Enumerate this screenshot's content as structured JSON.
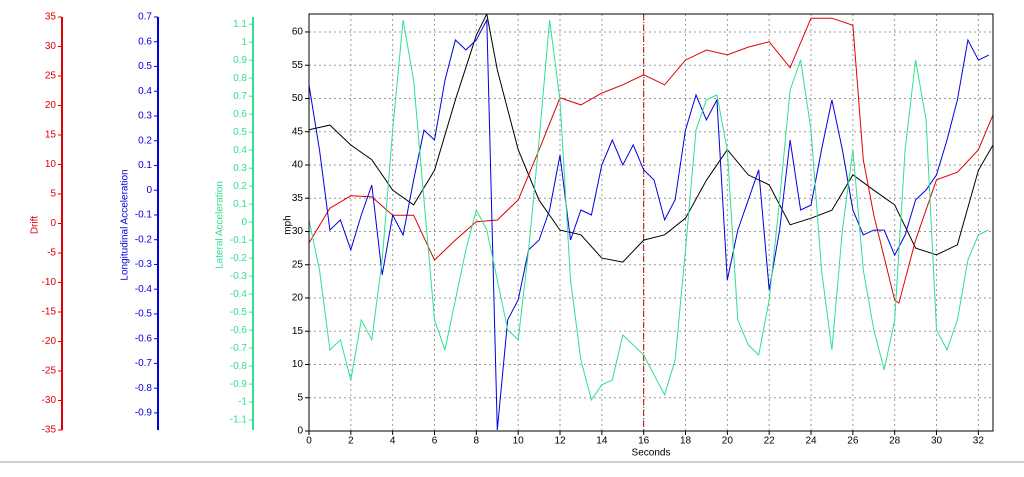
{
  "chart_data": {
    "type": "line",
    "xlabel": "Seconds",
    "xlim": [
      0,
      32.7
    ],
    "xticks": [
      0,
      2,
      4,
      6,
      8,
      10,
      12,
      14,
      16,
      18,
      20,
      22,
      24,
      26,
      28,
      30,
      32
    ],
    "grid": true,
    "cursor": 16,
    "cursor_color": "#c00000",
    "axes": [
      {
        "label": "mph",
        "color": "#000000",
        "ylim": [
          0,
          62.7
        ],
        "yticks": [
          0,
          5,
          10,
          15,
          20,
          25,
          30,
          35,
          40,
          45,
          50,
          55,
          60
        ]
      },
      {
        "label": "Drift",
        "color": "#e00000",
        "ylim": [
          -35,
          35
        ],
        "yticks": [
          35,
          30,
          25,
          20,
          15,
          10,
          5,
          0,
          -5,
          -10,
          -15,
          -20,
          -25,
          -30,
          -35
        ]
      },
      {
        "label": "Longitudinal Acceleration",
        "color": "#0000e0",
        "ylim": [
          -0.969,
          0.7
        ],
        "yticks": [
          0.7,
          0.6,
          0.5,
          0.4,
          0.3,
          0.2,
          0.1,
          0,
          -0.1,
          -0.2,
          -0.3,
          -0.4,
          -0.5,
          -0.6,
          -0.7,
          -0.8,
          -0.9
        ]
      },
      {
        "label": "Lateral Acceleration",
        "color": "#30e090",
        "ylim": [
          -1.155,
          1.14
        ],
        "yticks": [
          1.1,
          1,
          0.9,
          0.8,
          0.7,
          0.6,
          0.5,
          0.4,
          0.3,
          0.2,
          0.1,
          0,
          -0.1,
          -0.2,
          -0.3,
          -0.4,
          -0.5,
          -0.6,
          -0.7,
          -0.8,
          -0.9,
          -1,
          -1.1
        ]
      }
    ],
    "series": [
      {
        "name": "mph",
        "color": "#000000",
        "axis": 0,
        "x": [
          0,
          1,
          2,
          3,
          4,
          5,
          6,
          7,
          8,
          8.5,
          9,
          10,
          11,
          12,
          13,
          14,
          15,
          16,
          17,
          18,
          19,
          20,
          21,
          22,
          23,
          24,
          25,
          26,
          27,
          28,
          29,
          30,
          31,
          32,
          32.7
        ],
        "values": [
          45.3,
          46,
          43,
          40.8,
          36.2,
          34,
          39.2,
          49.8,
          59.5,
          62.7,
          54.3,
          42.3,
          34.7,
          30.2,
          29.5,
          26,
          25.4,
          28.7,
          29.5,
          32,
          37.7,
          42.3,
          38.5,
          37,
          31,
          32,
          33.2,
          38.5,
          36.2,
          34,
          27.5,
          26.5,
          28,
          39.2,
          43
        ]
      },
      {
        "name": "Drift",
        "color": "#e00000",
        "axis": 1,
        "x": [
          0,
          1,
          2,
          3,
          4,
          5,
          6,
          7,
          8,
          9,
          10,
          11,
          12,
          13,
          14,
          15,
          16,
          17,
          18,
          19,
          20,
          21,
          22,
          23,
          24,
          25,
          26,
          26.5,
          27,
          28,
          28.2,
          29,
          30,
          31,
          32,
          32.7
        ],
        "values": [
          -3.3,
          2.6,
          4.7,
          4.5,
          1.4,
          1.4,
          -6.2,
          -2.8,
          0.3,
          0.6,
          4,
          12.5,
          21.3,
          20.1,
          22.1,
          23.5,
          25.2,
          23.5,
          27.7,
          29.4,
          28.6,
          29.9,
          30.8,
          26.4,
          34.8,
          34.8,
          33.6,
          10.8,
          1.4,
          -13,
          -13.5,
          -2.8,
          7.4,
          8.7,
          12.5,
          18.4
        ]
      },
      {
        "name": "Longitudinal Acceleration",
        "color": "#0000e0",
        "axis": 2,
        "x": [
          0,
          0.5,
          1,
          1.5,
          2,
          2.5,
          3,
          3.5,
          4,
          4.5,
          5,
          5.5,
          6,
          6.5,
          7,
          7.5,
          8,
          8.5,
          9,
          9.5,
          10,
          10.5,
          11,
          11.5,
          12,
          12.5,
          13,
          13.5,
          14,
          14.5,
          15,
          15.5,
          16,
          16.5,
          17,
          17.5,
          18,
          18.5,
          19,
          19.5,
          20,
          20.5,
          21,
          21.5,
          22,
          22.5,
          23,
          23.5,
          24,
          24.5,
          25,
          25.5,
          26,
          26.5,
          27,
          27.5,
          28,
          28.5,
          29,
          29.5,
          30,
          30.5,
          31,
          31.5,
          32,
          32.5
        ],
        "values": [
          0.425,
          0.163,
          -0.161,
          -0.12,
          -0.241,
          -0.1,
          0.021,
          -0.342,
          -0.1,
          -0.181,
          0.041,
          0.243,
          0.203,
          0.445,
          0.607,
          0.567,
          0.607,
          0.688,
          -0.969,
          -0.524,
          -0.443,
          -0.241,
          -0.201,
          -0.08,
          0.142,
          -0.201,
          -0.08,
          -0.1,
          0.102,
          0.203,
          0.102,
          0.183,
          0.082,
          0.041,
          -0.12,
          -0.039,
          0.243,
          0.385,
          0.284,
          0.365,
          -0.363,
          -0.161,
          -0.039,
          0.082,
          -0.403,
          -0.161,
          0.203,
          -0.08,
          -0.06,
          0.163,
          0.365,
          0.163,
          -0.08,
          -0.181,
          -0.161,
          -0.161,
          -0.262,
          -0.181,
          -0.039,
          0.001,
          0.062,
          0.203,
          0.365,
          0.607,
          0.526,
          0.546
        ]
      },
      {
        "name": "Lateral Acceleration",
        "color": "#30e090",
        "axis": 3,
        "x": [
          0,
          0.5,
          1,
          1.5,
          2,
          2.5,
          3,
          3.5,
          4,
          4.5,
          5,
          5.5,
          6,
          6.5,
          7,
          7.5,
          8,
          8.5,
          9,
          9.5,
          10,
          10.5,
          11,
          11.5,
          12,
          12.5,
          13,
          13.5,
          14,
          14.5,
          15,
          15.5,
          16,
          16.5,
          17,
          17.5,
          18,
          18.5,
          19,
          19.5,
          20,
          20.5,
          21,
          21.5,
          22,
          22.5,
          23,
          23.5,
          24,
          24.5,
          25,
          25.5,
          26,
          26.5,
          27,
          27.5,
          28,
          28.5,
          29,
          29.5,
          30,
          30.5,
          31,
          31.5,
          32,
          32.5
        ],
        "values": [
          0.012,
          -0.266,
          -0.71,
          -0.654,
          -0.877,
          -0.543,
          -0.654,
          -0.21,
          0.512,
          1.123,
          0.79,
          0.123,
          -0.543,
          -0.71,
          -0.432,
          -0.154,
          0.068,
          -0.043,
          -0.321,
          -0.599,
          -0.654,
          -0.154,
          0.457,
          1.123,
          0.679,
          -0.321,
          -0.766,
          -0.988,
          -0.904,
          -0.877,
          -0.627,
          -0.682,
          -0.738,
          -0.849,
          -0.96,
          -0.766,
          -0.154,
          0.512,
          0.679,
          0.707,
          0.401,
          -0.543,
          -0.682,
          -0.738,
          -0.432,
          0.123,
          0.734,
          0.901,
          0.512,
          -0.266,
          -0.71,
          -0.043,
          0.401,
          -0.266,
          -0.599,
          -0.821,
          -0.543,
          0.401,
          0.901,
          0.568,
          -0.599,
          -0.71,
          -0.543,
          -0.21,
          -0.071,
          -0.043
        ]
      }
    ]
  }
}
